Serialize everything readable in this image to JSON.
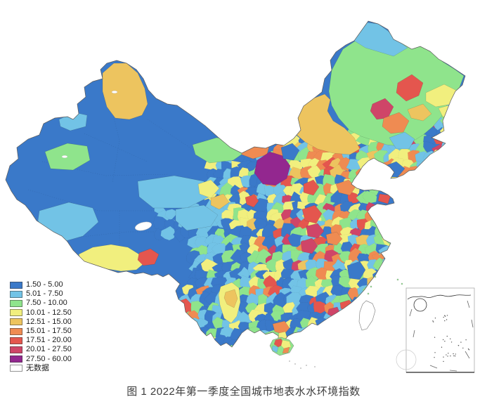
{
  "figure": {
    "caption": "图 1 2022年第一季度全国城市地表水水环境指数"
  },
  "legend": {
    "items": [
      {
        "label": "1.50 - 5.00",
        "color": "#3A79C9"
      },
      {
        "label": "5.01 - 7.50",
        "color": "#72C3E6"
      },
      {
        "label": "7.50 - 10.00",
        "color": "#8FE48C"
      },
      {
        "label": "10.01 - 12.50",
        "color": "#F1EF7E"
      },
      {
        "label": "12.51 - 15.00",
        "color": "#EDC45F"
      },
      {
        "label": "15.01 - 17.50",
        "color": "#EF8B52"
      },
      {
        "label": "17.51 - 20.00",
        "color": "#E4564E"
      },
      {
        "label": "20.01 - 27.50",
        "color": "#CF4568"
      },
      {
        "label": "27.50 - 60.00",
        "color": "#93278F"
      },
      {
        "label": "无数据",
        "color": "#FFFFFF"
      }
    ]
  },
  "map": {
    "palette": {
      "c1": "#3A79C9",
      "c2": "#72C3E6",
      "c3": "#8FE48C",
      "c4": "#F1EF7E",
      "c5": "#EDC45F",
      "c6": "#EF8B52",
      "c7": "#E4564E",
      "c8": "#CF4568",
      "c9": "#93278F",
      "nodata": "#FFFFFF",
      "coast": "#5a5a5a"
    }
  }
}
